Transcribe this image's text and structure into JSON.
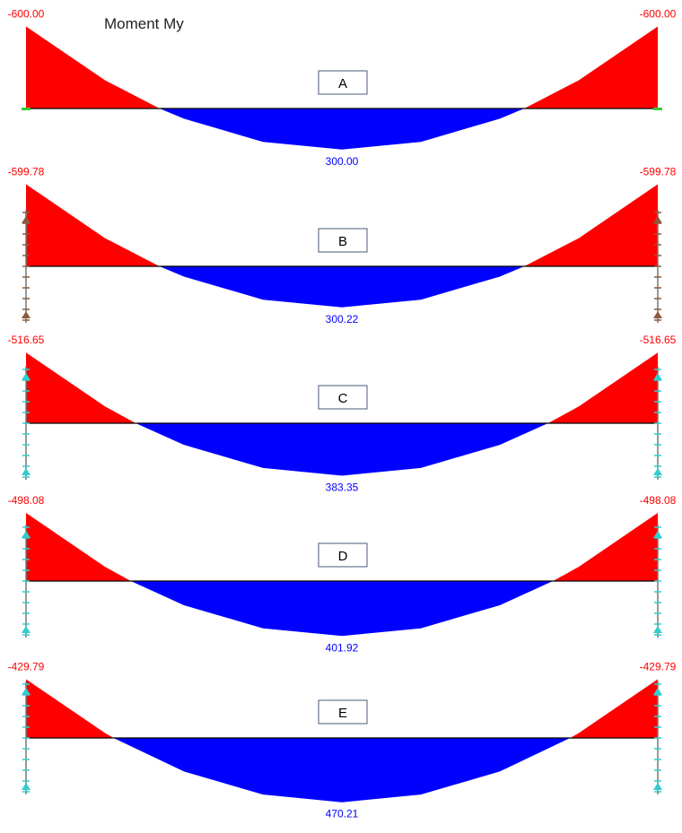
{
  "title": "Moment My",
  "colors": {
    "negative": "#ff0000",
    "positive": "#0000ff",
    "axis": "#000000",
    "label_border": "#4a5a7a"
  },
  "diagrams": [
    {
      "label": "A",
      "end_moment": -600.0,
      "mid_moment": 300.0,
      "left_value": "-600.00",
      "right_value": "-600.00",
      "mid_value": "300.00",
      "support": "fixed",
      "support_color": "#33cc33"
    },
    {
      "label": "B",
      "end_moment": -599.78,
      "mid_moment": 300.22,
      "left_value": "-599.78",
      "right_value": "-599.78",
      "mid_value": "300.22",
      "support": "column",
      "support_color": "#8b5a3c"
    },
    {
      "label": "C",
      "end_moment": -516.65,
      "mid_moment": 383.35,
      "left_value": "-516.65",
      "right_value": "-516.65",
      "mid_value": "383.35",
      "support": "column",
      "support_color": "#33cccc"
    },
    {
      "label": "D",
      "end_moment": -498.08,
      "mid_moment": 401.92,
      "left_value": "-498.08",
      "right_value": "-498.08",
      "mid_value": "401.92",
      "support": "column",
      "support_color": "#33cccc"
    },
    {
      "label": "E",
      "end_moment": -429.79,
      "mid_moment": 470.21,
      "left_value": "-429.79",
      "right_value": "-429.79",
      "mid_value": "470.21",
      "support": "column",
      "support_color": "#33cccc"
    }
  ]
}
